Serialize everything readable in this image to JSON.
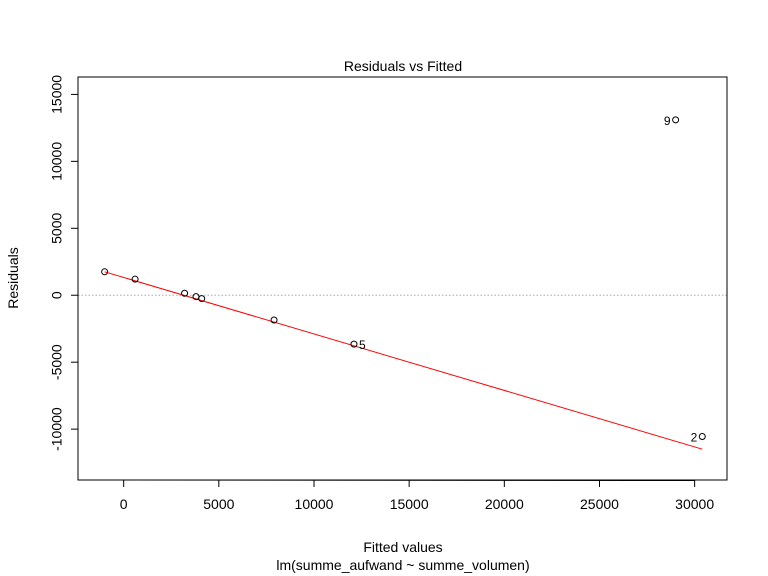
{
  "chart_data": {
    "type": "scatter",
    "title": "Residuals vs Fitted",
    "xlabel": "Fitted values",
    "ylabel": "Residuals",
    "subtitle": "lm(summe_aufwand ~ summe_volumen)",
    "xlim": [
      -2400,
      31700
    ],
    "ylim": [
      -13800,
      16300
    ],
    "xticks": [
      0,
      5000,
      10000,
      15000,
      20000,
      25000,
      30000
    ],
    "yticks": [
      -10000,
      -5000,
      0,
      5000,
      10000,
      15000
    ],
    "points": [
      {
        "x": -1000,
        "y": 1750
      },
      {
        "x": 600,
        "y": 1200
      },
      {
        "x": 3200,
        "y": 150
      },
      {
        "x": 3800,
        "y": -100
      },
      {
        "x": 4100,
        "y": -250
      },
      {
        "x": 7900,
        "y": -1850
      },
      {
        "x": 12100,
        "y": -3650
      },
      {
        "x": 29000,
        "y": 13100
      },
      {
        "x": 30400,
        "y": -10550
      }
    ],
    "point_labels": [
      {
        "x": 12100,
        "y": -3650,
        "label": "5",
        "side": "right"
      },
      {
        "x": 29000,
        "y": 13100,
        "label": "9",
        "side": "left"
      },
      {
        "x": 30400,
        "y": -10550,
        "label": "2",
        "side": "left"
      }
    ],
    "zero_line": 0,
    "smoother": [
      {
        "x": -1000,
        "y": 1750
      },
      {
        "x": 30400,
        "y": -11500
      }
    ],
    "colors": {
      "smoother": "#ff0000",
      "points": "#000000",
      "zero_line": "#aaaaaa"
    }
  }
}
